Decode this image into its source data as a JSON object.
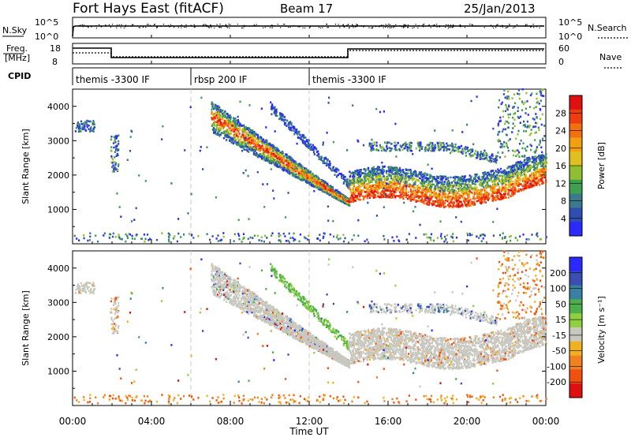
{
  "header": {
    "station": "Fort Hays East (fitACF)",
    "beam": "Beam 17",
    "date": "25/Jan/2013"
  },
  "noise_panel": {
    "left_label": "N.Sky",
    "right_label": "N.Search",
    "left_ticks": [
      "10^5",
      "10^0"
    ],
    "right_ticks": [
      "10^5",
      "10^0"
    ]
  },
  "freq_panel": {
    "left_label_line1": "Freq.",
    "left_label_line2": "[MHz]",
    "right_label": "Nave",
    "left_ticks": [
      "18",
      "8"
    ],
    "right_ticks": [
      "60",
      "0"
    ]
  },
  "cpid": {
    "label": "CPID",
    "segments": [
      {
        "label": "themis -3300 IF",
        "start_h": 0,
        "end_h": 6
      },
      {
        "label": "rbsp 200 IF",
        "start_h": 6,
        "end_h": 12
      },
      {
        "label": "themis -3300 IF",
        "start_h": 12,
        "end_h": 24
      }
    ]
  },
  "chart_data": [
    {
      "type": "heatmap",
      "name": "power",
      "ylabel": "Slant Range [km]",
      "ylim": [
        0,
        4500
      ],
      "yticks": [
        "1000",
        "2000",
        "3000",
        "4000"
      ],
      "colorbar_label": "Power [dB]",
      "colorbar_ticks": [
        "4",
        "8",
        "12",
        "16",
        "20",
        "24",
        "28"
      ],
      "colors": [
        "#2a2aff",
        "#2f4fb0",
        "#3a7a8a",
        "#3fa050",
        "#8fbf30",
        "#e0c020",
        "#f2a010",
        "#f27010",
        "#ee3d10",
        "#e01010"
      ]
    },
    {
      "type": "heatmap",
      "name": "velocity",
      "ylabel": "Slant Range [km]",
      "ylim": [
        0,
        4500
      ],
      "yticks": [
        "1000",
        "2000",
        "3000",
        "4000"
      ],
      "xlabel": "Time UT",
      "xlim": [
        0,
        24
      ],
      "xticks": [
        "00:00",
        "04:00",
        "08:00",
        "12:00",
        "16:00",
        "20:00",
        "00:00"
      ],
      "colorbar_label": "Velocity [m s⁻¹]",
      "colorbar_ticks": [
        "200",
        "100",
        "50",
        "15",
        "-15",
        "-50",
        "-100",
        "-200"
      ],
      "colors": [
        "#2a2aff",
        "#3a4faf",
        "#3a80a0",
        "#4caf4c",
        "#8fd040",
        "#c8c8c0",
        "#f0b020",
        "#f08020",
        "#f05010",
        "#e01010"
      ]
    }
  ]
}
